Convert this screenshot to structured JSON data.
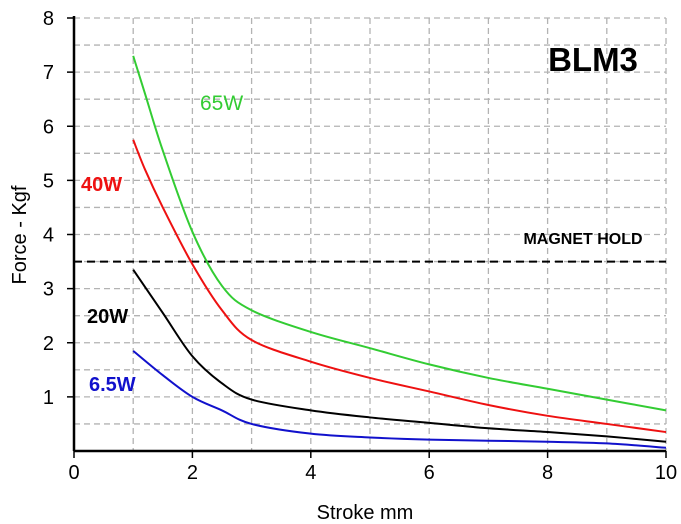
{
  "chart_data": {
    "type": "line",
    "title": "BLM3",
    "xlabel": "Stroke mm",
    "ylabel": "Force - Kgf",
    "xlim": [
      0,
      10
    ],
    "ylim": [
      0,
      8
    ],
    "x_ticks": [
      "0",
      "2",
      "4",
      "6",
      "8",
      "10"
    ],
    "y_ticks": [
      "1",
      "2",
      "3",
      "4",
      "5",
      "6",
      "7",
      "8"
    ],
    "grid": true,
    "grid_style": "dashed",
    "reference_line": {
      "label": "MAGNET HOLD",
      "y": 3.5
    },
    "series": [
      {
        "name": "65W",
        "color": "#33cc33",
        "bold": false,
        "x": [
          1,
          1.2,
          1.5,
          2,
          2.5,
          3,
          4,
          5,
          6,
          7,
          8,
          9,
          10
        ],
        "y": [
          7.3,
          6.6,
          5.55,
          4.05,
          3.05,
          2.6,
          2.2,
          1.9,
          1.6,
          1.35,
          1.15,
          0.95,
          0.75
        ]
      },
      {
        "name": "40W",
        "color": "#ee1111",
        "bold": true,
        "x": [
          1,
          1.2,
          1.5,
          2,
          2.5,
          3,
          4,
          5,
          6,
          7,
          8,
          9,
          10
        ],
        "y": [
          5.75,
          5.2,
          4.5,
          3.45,
          2.6,
          2.05,
          1.65,
          1.35,
          1.1,
          0.85,
          0.65,
          0.5,
          0.35
        ]
      },
      {
        "name": "20W",
        "color": "#000000",
        "bold": true,
        "x": [
          1,
          1.5,
          2,
          2.5,
          3,
          4,
          5,
          6,
          7,
          8,
          9,
          10
        ],
        "y": [
          3.35,
          2.55,
          1.75,
          1.25,
          0.95,
          0.75,
          0.62,
          0.52,
          0.42,
          0.35,
          0.27,
          0.17
        ]
      },
      {
        "name": "6.5W",
        "color": "#1111cc",
        "bold": true,
        "x": [
          1,
          1.5,
          2,
          2.5,
          3,
          4,
          5,
          6,
          7,
          8,
          9,
          10
        ],
        "y": [
          1.85,
          1.4,
          1.0,
          0.75,
          0.5,
          0.32,
          0.25,
          0.21,
          0.19,
          0.17,
          0.14,
          0.06
        ]
      }
    ]
  }
}
